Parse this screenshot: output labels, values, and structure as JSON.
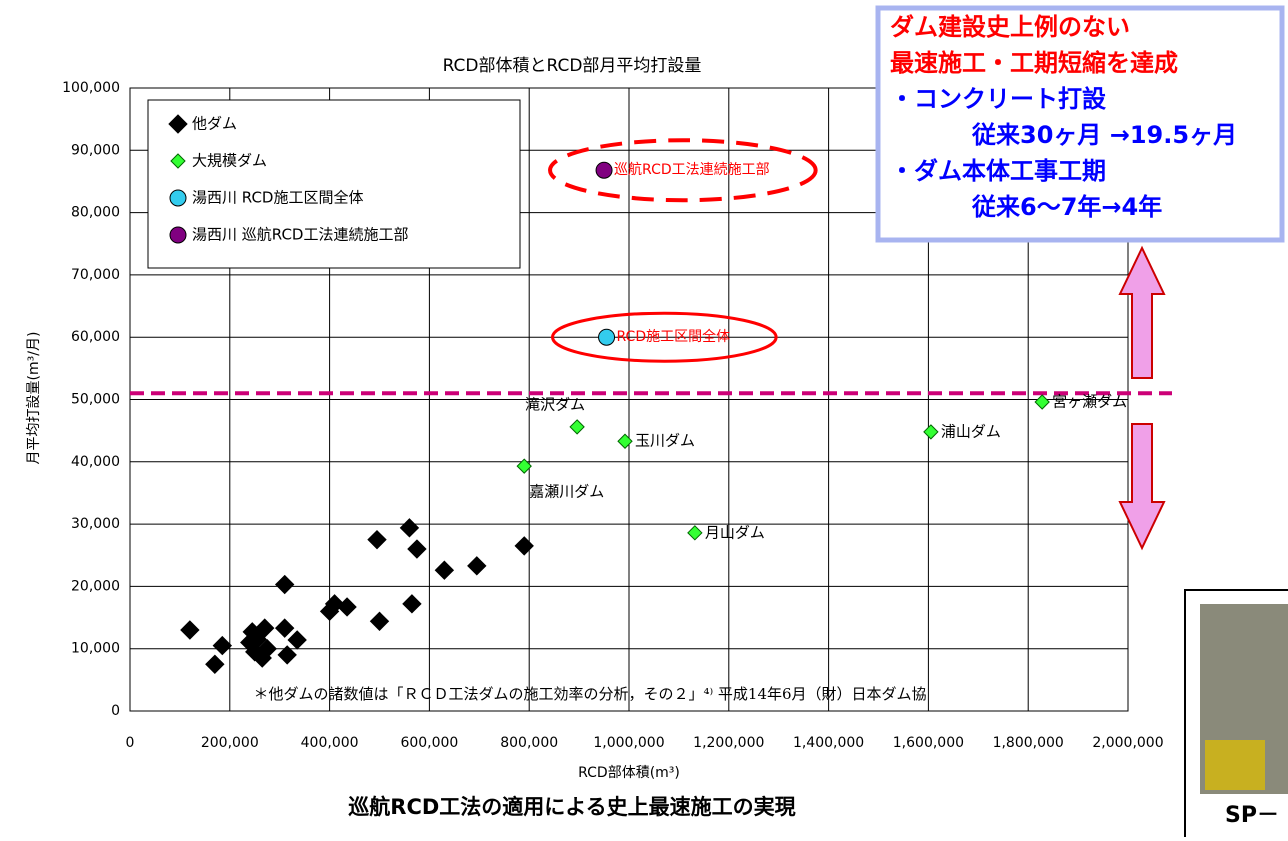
{
  "chart_data": {
    "type": "scatter",
    "title": "RCD部体積とRCD部月平均打設量",
    "xlabel": "RCD部体積(m³)",
    "ylabel": "月平均打設量(m³/月)",
    "xlim": [
      0,
      2000000
    ],
    "ylim": [
      0,
      100000
    ],
    "xticks": [
      0,
      {
        "value": 200000,
        "label": "200,000"
      },
      {
        "value": 400000,
        "label": "400,000"
      },
      {
        "value": 600000,
        "label": "600,000"
      },
      {
        "value": 800000,
        "label": "800,000"
      },
      {
        "value": 1000000,
        "label": "1,000,000"
      },
      {
        "value": 1200000,
        "label": "1,200,000"
      },
      {
        "value": 1400000,
        "label": "1,400,000"
      },
      {
        "value": 1600000,
        "label": "1,600,000"
      },
      {
        "value": 1800000,
        "label": "1,800,000"
      },
      {
        "value": 2000000,
        "label": "2,000,000"
      }
    ],
    "yticks": [
      0,
      {
        "value": 10000,
        "label": "10,000"
      },
      {
        "value": 20000,
        "label": "20,000"
      },
      {
        "value": 30000,
        "label": "30,000"
      },
      {
        "value": 40000,
        "label": "40,000"
      },
      {
        "value": 50000,
        "label": "50,000"
      },
      {
        "value": 60000,
        "label": "60,000"
      },
      {
        "value": 70000,
        "label": "70,000"
      },
      {
        "value": 80000,
        "label": "80,000"
      },
      {
        "value": 90000,
        "label": "90,000"
      },
      {
        "value": 100000,
        "label": "100,000"
      }
    ],
    "grid": true,
    "legend": "upper left",
    "series": [
      {
        "name": "他ダム",
        "color": "#000000",
        "marker": "diamond",
        "x": [
          120000,
          170000,
          185000,
          245000,
          240000,
          255000,
          265000,
          270000,
          275000,
          310000,
          310000,
          315000,
          335000,
          250000,
          400000,
          410000,
          435000,
          495000,
          500000,
          560000,
          575000,
          565000,
          630000,
          695000,
          790000
        ],
        "values": [
          13000,
          7500,
          10500,
          12700,
          11000,
          11500,
          8500,
          13300,
          10000,
          20300,
          13300,
          9000,
          11400,
          9500,
          16000,
          17200,
          16700,
          27500,
          14400,
          29400,
          26000,
          17200,
          22600,
          23300,
          26500
        ]
      },
      {
        "name": "大規模ダム",
        "color": "#33ff33",
        "marker": "diamond",
        "x": [
          790000,
          896000,
          992000,
          1132000,
          1605000,
          1828000
        ],
        "values": [
          39300,
          45600,
          43300,
          28600,
          44800,
          49600
        ],
        "point_labels": [
          "嘉瀬川ダム",
          "滝沢ダム",
          "玉川ダム",
          "月山ダム",
          "浦山ダム",
          "宮ヶ瀬ダム"
        ]
      },
      {
        "name": "湯西川 RCD施工区間全体",
        "color": "#33ccee",
        "marker": "circle",
        "x": [
          955000
        ],
        "values": [
          60000
        ],
        "point_labels": [
          "RCD施工区間全体"
        ],
        "highlight": "solid"
      },
      {
        "name": "湯西川 巡航RCD工法連続施工部",
        "color": "#800080",
        "marker": "circle",
        "x": [
          950000
        ],
        "values": [
          86800
        ],
        "point_labels": [
          "巡航RCD工法連続施工部"
        ],
        "highlight": "dashed"
      }
    ],
    "hline": {
      "value": 51000,
      "color": "#cc0077"
    },
    "footnote": "＊他ダムの諸数値は「ＲＣＤ工法ダムの施工効率の分析，その２」⁴⁾ 平成14年6月（財）日本ダム協"
  },
  "callout": {
    "lines": [
      "ダム建設史上例のない",
      "最速施工・工期短縮を達成",
      "・コンクリート打設",
      "従来30ヶ月 →19.5ヶ月",
      "・ダム本体工事工期",
      "従来6～7年→4年"
    ]
  },
  "caption": "巡航RCD工法の適用による史上最速施工の実現",
  "photo_label": "SP－"
}
